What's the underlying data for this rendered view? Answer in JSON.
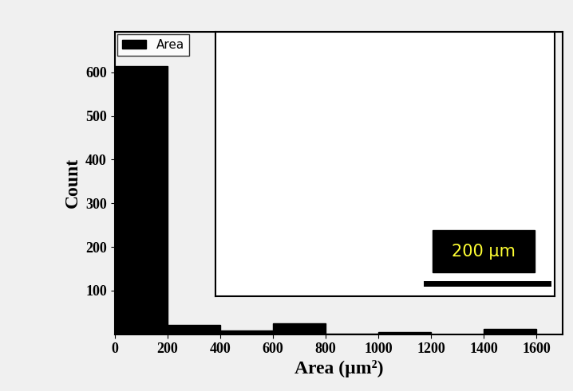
{
  "chart_data": {
    "type": "histogram",
    "xlabel": "Area (µm²)",
    "ylabel": "Count",
    "bins": [
      0,
      200,
      400,
      600,
      800,
      1000,
      1200,
      1400,
      1600
    ],
    "series": [
      {
        "name": "Area",
        "color": "#000000",
        "values": [
          615,
          22,
          8,
          25,
          2,
          5,
          0,
          12
        ]
      }
    ],
    "xlim": [
      0,
      1700
    ],
    "ylim": [
      0,
      693
    ],
    "xticks": [
      0,
      200,
      400,
      600,
      800,
      1000,
      1200,
      1400,
      1600
    ],
    "yticks": [
      100,
      200,
      300,
      400,
      500,
      600
    ],
    "legend": "upper left",
    "inset": {
      "scale_bar_label": "200 µm"
    }
  }
}
